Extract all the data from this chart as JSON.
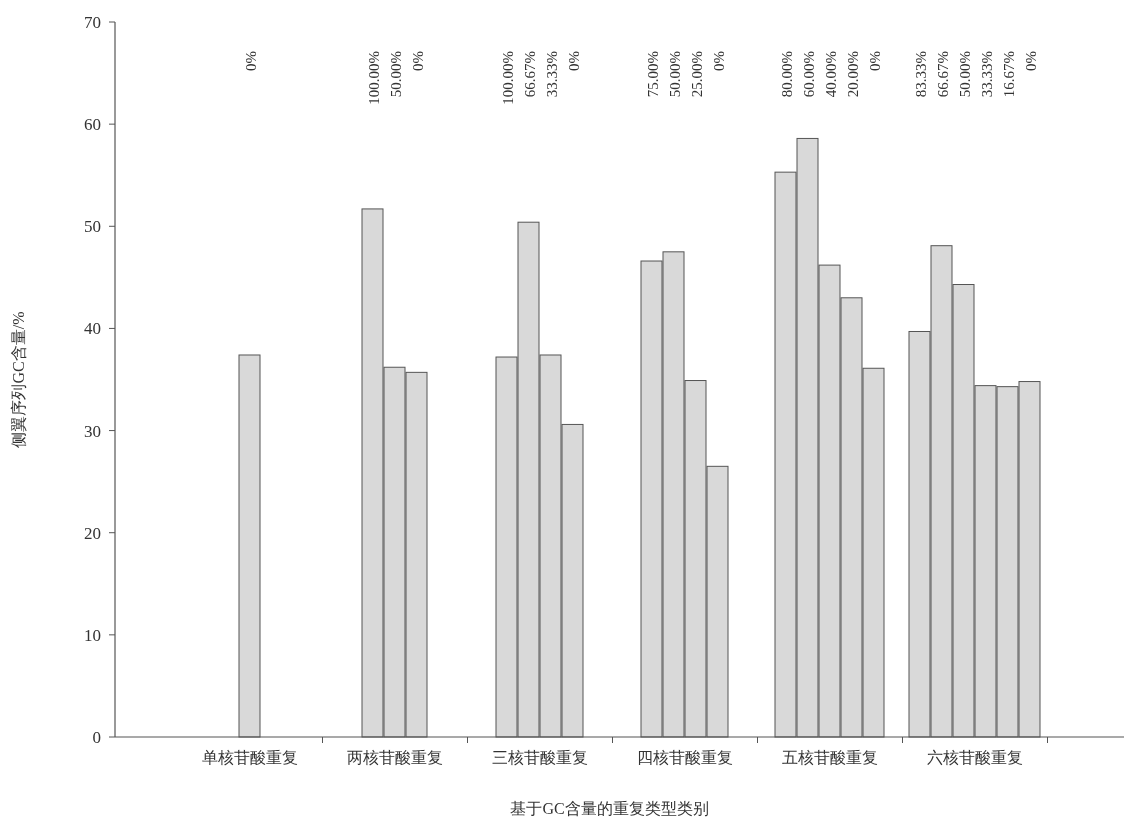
{
  "chart_data": {
    "type": "bar",
    "xlabel": "基于GC含量的重复类型类别",
    "ylabel": "侧翼序列GC含量/%",
    "categories": [
      "单核苷酸重复",
      "两核苷酸重复",
      "三核苷酸重复",
      "四核苷酸重复",
      "五核苷酸重复",
      "六核苷酸重复"
    ],
    "ylim": [
      0,
      70
    ],
    "yticks": [
      0,
      10,
      20,
      30,
      40,
      50,
      60,
      70
    ],
    "grid": false,
    "annotations": [
      "0%",
      "100.00%",
      "50.00%",
      "0%",
      "100.00%",
      "66.67%",
      "33.33%",
      "0%",
      "75.00%",
      "50.00%",
      "25.00%",
      "0%",
      "80.00%",
      "60.00%",
      "40.00%",
      "20.00%",
      "0%",
      "83.33%",
      "66.67%",
      "50.00%",
      "33.33%",
      "16.67%",
      "0%"
    ],
    "series": [
      {
        "color": "#d9d9d9",
        "values": [
          37.4,
          51.7,
          37.2,
          46.6,
          55.3,
          39.7
        ]
      },
      {
        "color": "#d9d9d9",
        "values": [
          null,
          36.2,
          50.4,
          47.5,
          58.6,
          48.1
        ]
      },
      {
        "color": "#d9d9d9",
        "values": [
          null,
          35.7,
          37.4,
          34.9,
          46.2,
          44.3
        ]
      },
      {
        "color": "#d9d9d9",
        "values": [
          null,
          null,
          30.6,
          26.5,
          43.0,
          34.4
        ]
      },
      {
        "color": "#d9d9d9",
        "values": [
          null,
          null,
          null,
          null,
          36.1,
          34.3
        ]
      },
      {
        "color": "#d9d9d9",
        "values": [
          null,
          null,
          null,
          null,
          null,
          34.8
        ]
      }
    ]
  }
}
